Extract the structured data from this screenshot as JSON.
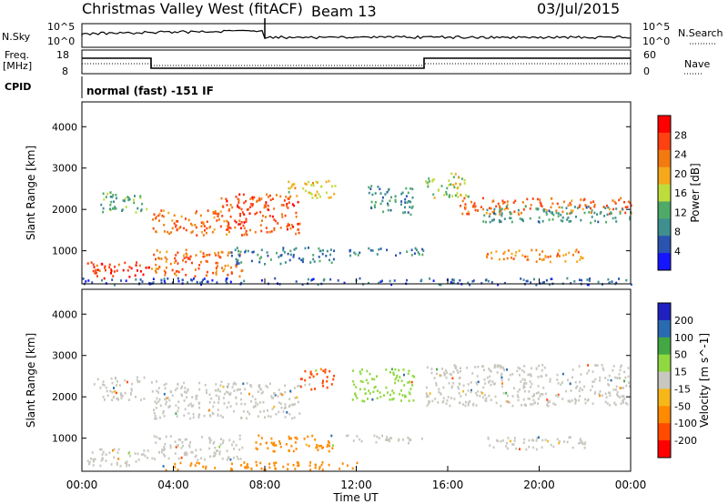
{
  "header": {
    "station": "Christmas Valley West (fitACF)",
    "beam": "Beam 13",
    "date": "03/Jul/2015"
  },
  "top_panels": {
    "noise_left_label": "N.Sky",
    "noise_right_label": "N.Search",
    "noise_tick_hi": "10^5",
    "noise_tick_lo": "10^0",
    "freq_label_1": "Freq.",
    "freq_label_2": "[MHz]",
    "freq_ticks": [
      "18",
      "8"
    ],
    "nave_label": "Nave",
    "nave_ticks": [
      "60",
      "0"
    ],
    "cpid_label": "CPID",
    "cpid_text": "normal (fast) -151 IF"
  },
  "colors": {
    "power_scale": [
      "#1515ff",
      "#2a54b0",
      "#3f8f8f",
      "#4faa69",
      "#bedd3c",
      "#f4a81a",
      "#f27a10",
      "#ff4010",
      "#ff0000"
    ],
    "velocity_scale": [
      "#ff0000",
      "#ff4a00",
      "#ff8a00",
      "#f7b718",
      "#c8c8c0",
      "#90d840",
      "#43a843",
      "#2a6ab0",
      "#2020c0"
    ],
    "ground_scatter": "#c8c8c0"
  },
  "chart_data": [
    {
      "type": "heatmap",
      "name": "Power",
      "ylabel": "Slant Range [km]",
      "yticks": [
        "4000",
        "3000",
        "2000",
        "1000"
      ],
      "ylim": [
        200,
        4600
      ],
      "xlim_hours": [
        0,
        24
      ],
      "colorbar_label": "Power [dB]",
      "colorbar_ticks": [
        "28",
        "24",
        "20",
        "16",
        "12",
        "8",
        "4"
      ],
      "colorbar_range": [
        0,
        32
      ],
      "echo_bands": [
        {
          "t0": 0.8,
          "t1": 2.8,
          "r0": 1950,
          "r1": 2500,
          "level": 12
        },
        {
          "t0": 3.0,
          "t1": 6.5,
          "r0": 1400,
          "r1": 2000,
          "level": 24
        },
        {
          "t0": 6.0,
          "t1": 9.5,
          "r0": 1400,
          "r1": 2400,
          "level": 26
        },
        {
          "t0": 9.0,
          "t1": 11.2,
          "r0": 2300,
          "r1": 2750,
          "level": 18
        },
        {
          "t0": 12.5,
          "t1": 14.5,
          "r0": 1900,
          "r1": 2600,
          "level": 10
        },
        {
          "t0": 15.0,
          "t1": 17.0,
          "r0": 2300,
          "r1": 2900,
          "level": 16
        },
        {
          "t0": 16.5,
          "t1": 24.0,
          "r0": 1900,
          "r1": 2300,
          "level": 24
        },
        {
          "t0": 17.5,
          "t1": 24.0,
          "r0": 1700,
          "r1": 2100,
          "level": 10
        },
        {
          "t0": 0.2,
          "t1": 3.0,
          "r0": 350,
          "r1": 750,
          "level": 28
        },
        {
          "t0": 3.0,
          "t1": 7.0,
          "r0": 400,
          "r1": 1050,
          "level": 24
        },
        {
          "t0": 6.5,
          "t1": 11.0,
          "r0": 700,
          "r1": 1100,
          "level": 8
        },
        {
          "t0": 11.5,
          "t1": 15.0,
          "r0": 900,
          "r1": 1100,
          "level": 8
        },
        {
          "t0": 17.5,
          "t1": 22.0,
          "r0": 750,
          "r1": 1050,
          "level": 22
        },
        {
          "t0": 0.0,
          "t1": 24.0,
          "r0": 200,
          "r1": 360,
          "level": 6
        }
      ]
    },
    {
      "type": "heatmap",
      "name": "Velocity",
      "ylabel": "Slant Range [km]",
      "yticks": [
        "4000",
        "3000",
        "2000",
        "1000"
      ],
      "ylim": [
        200,
        4600
      ],
      "xlim_hours": [
        0,
        24
      ],
      "xticks": [
        "00:00",
        "04:00",
        "08:00",
        "12:00",
        "16:00",
        "20:00",
        "00:00"
      ],
      "xlabel": "Time UT",
      "colorbar_label": "Velocity [m s^-1]",
      "colorbar_ticks": [
        "200",
        "100",
        "50",
        "15",
        "-15",
        "-50",
        "-100",
        "-200"
      ],
      "echo_bands": [
        {
          "t0": 0.5,
          "t1": 2.8,
          "r0": 1950,
          "r1": 2500,
          "v": 0
        },
        {
          "t0": 3.0,
          "t1": 9.5,
          "r0": 1500,
          "r1": 2400,
          "v": 0
        },
        {
          "t0": 9.5,
          "t1": 11.0,
          "r0": 2200,
          "r1": 2700,
          "v": -150
        },
        {
          "t0": 11.8,
          "t1": 14.5,
          "r0": 1900,
          "r1": 2700,
          "v": 30
        },
        {
          "t0": 15.0,
          "t1": 24.0,
          "r0": 1800,
          "r1": 2800,
          "v": 0
        },
        {
          "t0": 0.2,
          "t1": 3.0,
          "r0": 350,
          "r1": 800,
          "v": 0
        },
        {
          "t0": 3.0,
          "t1": 7.0,
          "r0": 500,
          "r1": 1100,
          "v": 0
        },
        {
          "t0": 7.5,
          "t1": 11.0,
          "r0": 700,
          "r1": 1100,
          "v": -70
        },
        {
          "t0": 3.5,
          "t1": 12.0,
          "r0": 250,
          "r1": 450,
          "v": -70
        },
        {
          "t0": 11.5,
          "t1": 15.0,
          "r0": 900,
          "r1": 1100,
          "v": 0
        },
        {
          "t0": 17.5,
          "t1": 22.0,
          "r0": 750,
          "r1": 1050,
          "v": 0
        }
      ]
    }
  ]
}
